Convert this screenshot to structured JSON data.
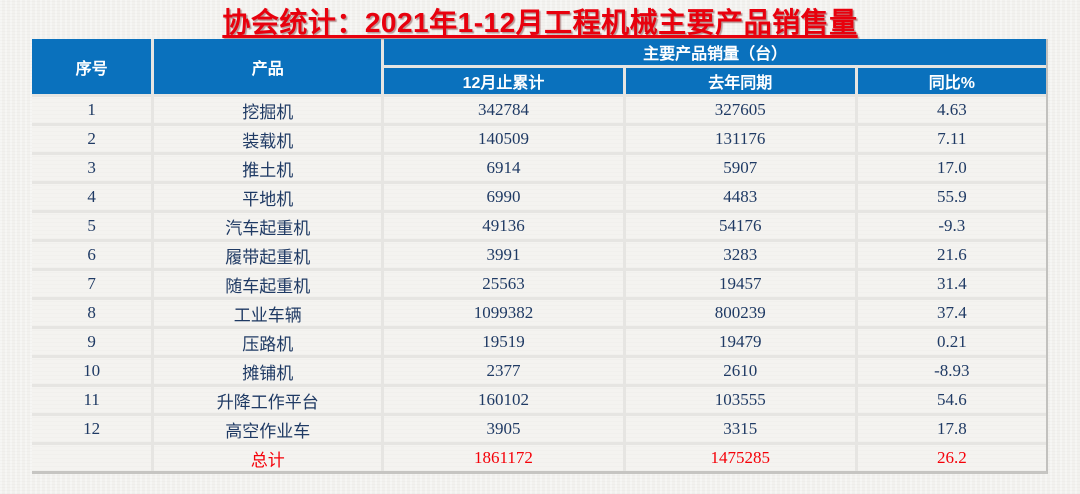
{
  "title": "协会统计：2021年1-12月工程机械主要产品销售量",
  "colors": {
    "title_red": "#e8000d",
    "header_blue": "#0a71bd",
    "body_text_navy": "#1f3a64",
    "total_red": "#f50008"
  },
  "table": {
    "header": {
      "no": "序号",
      "product": "产品",
      "group": "主要产品销量（台）",
      "dec": "12月止累计",
      "prev": "去年同期",
      "yoy": "同比%"
    },
    "rows": [
      {
        "no": "1",
        "product": "挖掘机",
        "dec": "342784",
        "prev": "327605",
        "yoy": "4.63"
      },
      {
        "no": "2",
        "product": "装载机",
        "dec": "140509",
        "prev": "131176",
        "yoy": "7.11"
      },
      {
        "no": "3",
        "product": "推土机",
        "dec": "6914",
        "prev": "5907",
        "yoy": "17.0"
      },
      {
        "no": "4",
        "product": "平地机",
        "dec": "6990",
        "prev": "4483",
        "yoy": "55.9"
      },
      {
        "no": "5",
        "product": "汽车起重机",
        "dec": "49136",
        "prev": "54176",
        "yoy": "-9.3"
      },
      {
        "no": "6",
        "product": "履带起重机",
        "dec": "3991",
        "prev": "3283",
        "yoy": "21.6"
      },
      {
        "no": "7",
        "product": "随车起重机",
        "dec": "25563",
        "prev": "19457",
        "yoy": "31.4"
      },
      {
        "no": "8",
        "product": "工业车辆",
        "dec": "1099382",
        "prev": "800239",
        "yoy": "37.4"
      },
      {
        "no": "9",
        "product": "压路机",
        "dec": "19519",
        "prev": "19479",
        "yoy": "0.21"
      },
      {
        "no": "10",
        "product": "摊铺机",
        "dec": "2377",
        "prev": "2610",
        "yoy": "-8.93"
      },
      {
        "no": "11",
        "product": "升降工作平台",
        "dec": "160102",
        "prev": "103555",
        "yoy": "54.6"
      },
      {
        "no": "12",
        "product": "高空作业车",
        "dec": "3905",
        "prev": "3315",
        "yoy": "17.8"
      }
    ],
    "total": {
      "no": "",
      "label": "总计",
      "dec": "1861172",
      "prev": "1475285",
      "yoy": "26.2"
    }
  }
}
